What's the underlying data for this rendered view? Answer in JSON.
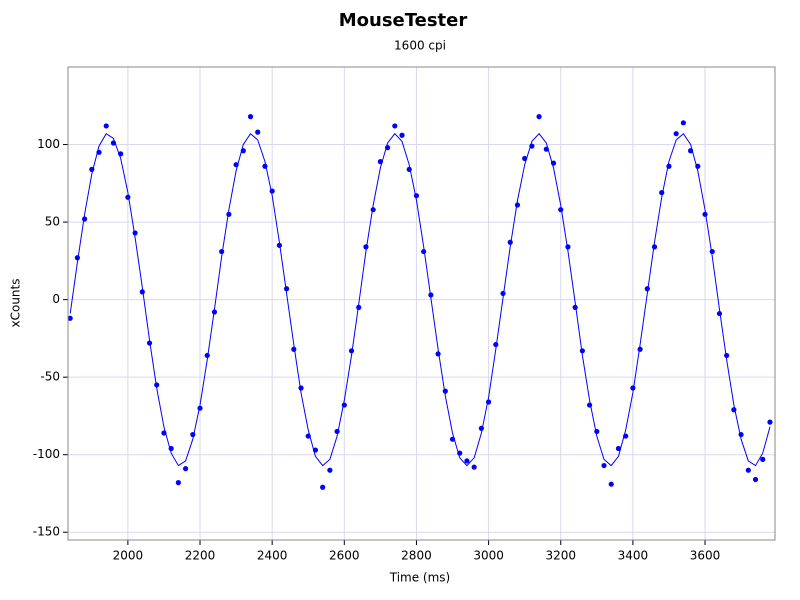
{
  "chart_data": {
    "type": "scatter",
    "title": "MouseTester",
    "subtitle": "1600 cpi",
    "x_label": "Time (ms)",
    "y_label": "xCounts",
    "xlim": [
      1834,
      3794
    ],
    "ylim": [
      -155,
      150
    ],
    "xticks": [
      2000,
      2200,
      2400,
      2600,
      2800,
      3000,
      3200,
      3400,
      3600
    ],
    "yticks": [
      -150,
      -100,
      -50,
      0,
      50,
      100
    ],
    "grid": true,
    "x": [
      1840,
      1860,
      1880,
      1900,
      1920,
      1940,
      1960,
      1980,
      2000,
      2020,
      2040,
      2060,
      2080,
      2100,
      2120,
      2140,
      2160,
      2180,
      2200,
      2220,
      2240,
      2260,
      2280,
      2300,
      2320,
      2340,
      2360,
      2380,
      2400,
      2420,
      2440,
      2460,
      2480,
      2500,
      2520,
      2540,
      2560,
      2580,
      2600,
      2620,
      2640,
      2660,
      2680,
      2700,
      2720,
      2740,
      2760,
      2780,
      2800,
      2820,
      2840,
      2860,
      2880,
      2900,
      2920,
      2940,
      2960,
      2980,
      3000,
      3020,
      3040,
      3060,
      3080,
      3100,
      3120,
      3140,
      3160,
      3180,
      3200,
      3220,
      3240,
      3260,
      3280,
      3300,
      3320,
      3340,
      3360,
      3380,
      3400,
      3420,
      3440,
      3460,
      3480,
      3500,
      3520,
      3540,
      3560,
      3580,
      3600,
      3620,
      3640,
      3660,
      3680,
      3700,
      3720,
      3740,
      3760,
      3780
    ],
    "series": [
      {
        "type": "scatter",
        "color": "#0000ff",
        "values": [
          -12,
          27,
          52,
          84,
          95,
          112,
          101,
          94,
          66,
          43,
          5,
          -28,
          -55,
          -86,
          -96,
          -118,
          -109,
          -87,
          -70,
          -36,
          -8,
          31,
          55,
          87,
          96,
          118,
          108,
          86,
          70,
          35,
          7,
          -32,
          -57,
          -88,
          -97,
          -121,
          -110,
          -85,
          -68,
          -33,
          -5,
          34,
          58,
          89,
          98,
          112,
          106,
          84,
          67,
          31,
          3,
          -35,
          -59,
          -90,
          -99,
          -104,
          -108,
          -83,
          -66,
          -29,
          4,
          37,
          61,
          91,
          99,
          118,
          97,
          88,
          58,
          34,
          -5,
          -33,
          -68,
          -85,
          -107,
          -119,
          -96,
          -88,
          -57,
          -32,
          7,
          34,
          69,
          86,
          107,
          114,
          96,
          86,
          55,
          31,
          -9,
          -36,
          -71,
          -87,
          -110,
          -116,
          -103,
          -79
        ]
      },
      {
        "type": "line",
        "color": "#0000ff",
        "values": [
          -9,
          24,
          55,
          81,
          99,
          107,
          104,
          91,
          69,
          40,
          8,
          -26,
          -57,
          -82,
          -99,
          -107,
          -104,
          -90,
          -68,
          -39,
          -6,
          28,
          58,
          83,
          100,
          107,
          103,
          89,
          67,
          37,
          4,
          -29,
          -60,
          -84,
          -101,
          -107,
          -103,
          -88,
          -65,
          -36,
          -3,
          31,
          61,
          85,
          101,
          107,
          102,
          87,
          64,
          34,
          1,
          -32,
          -62,
          -86,
          -102,
          -107,
          -102,
          -86,
          -63,
          -32,
          1,
          34,
          64,
          87,
          102,
          107,
          101,
          85,
          61,
          31,
          -2,
          -36,
          -65,
          -88,
          -103,
          -107,
          -101,
          -84,
          -60,
          -29,
          4,
          37,
          66,
          89,
          103,
          107,
          100,
          83,
          58,
          28,
          -6,
          -39,
          -68,
          -90,
          -104,
          -107,
          -99,
          -82
        ]
      }
    ]
  }
}
